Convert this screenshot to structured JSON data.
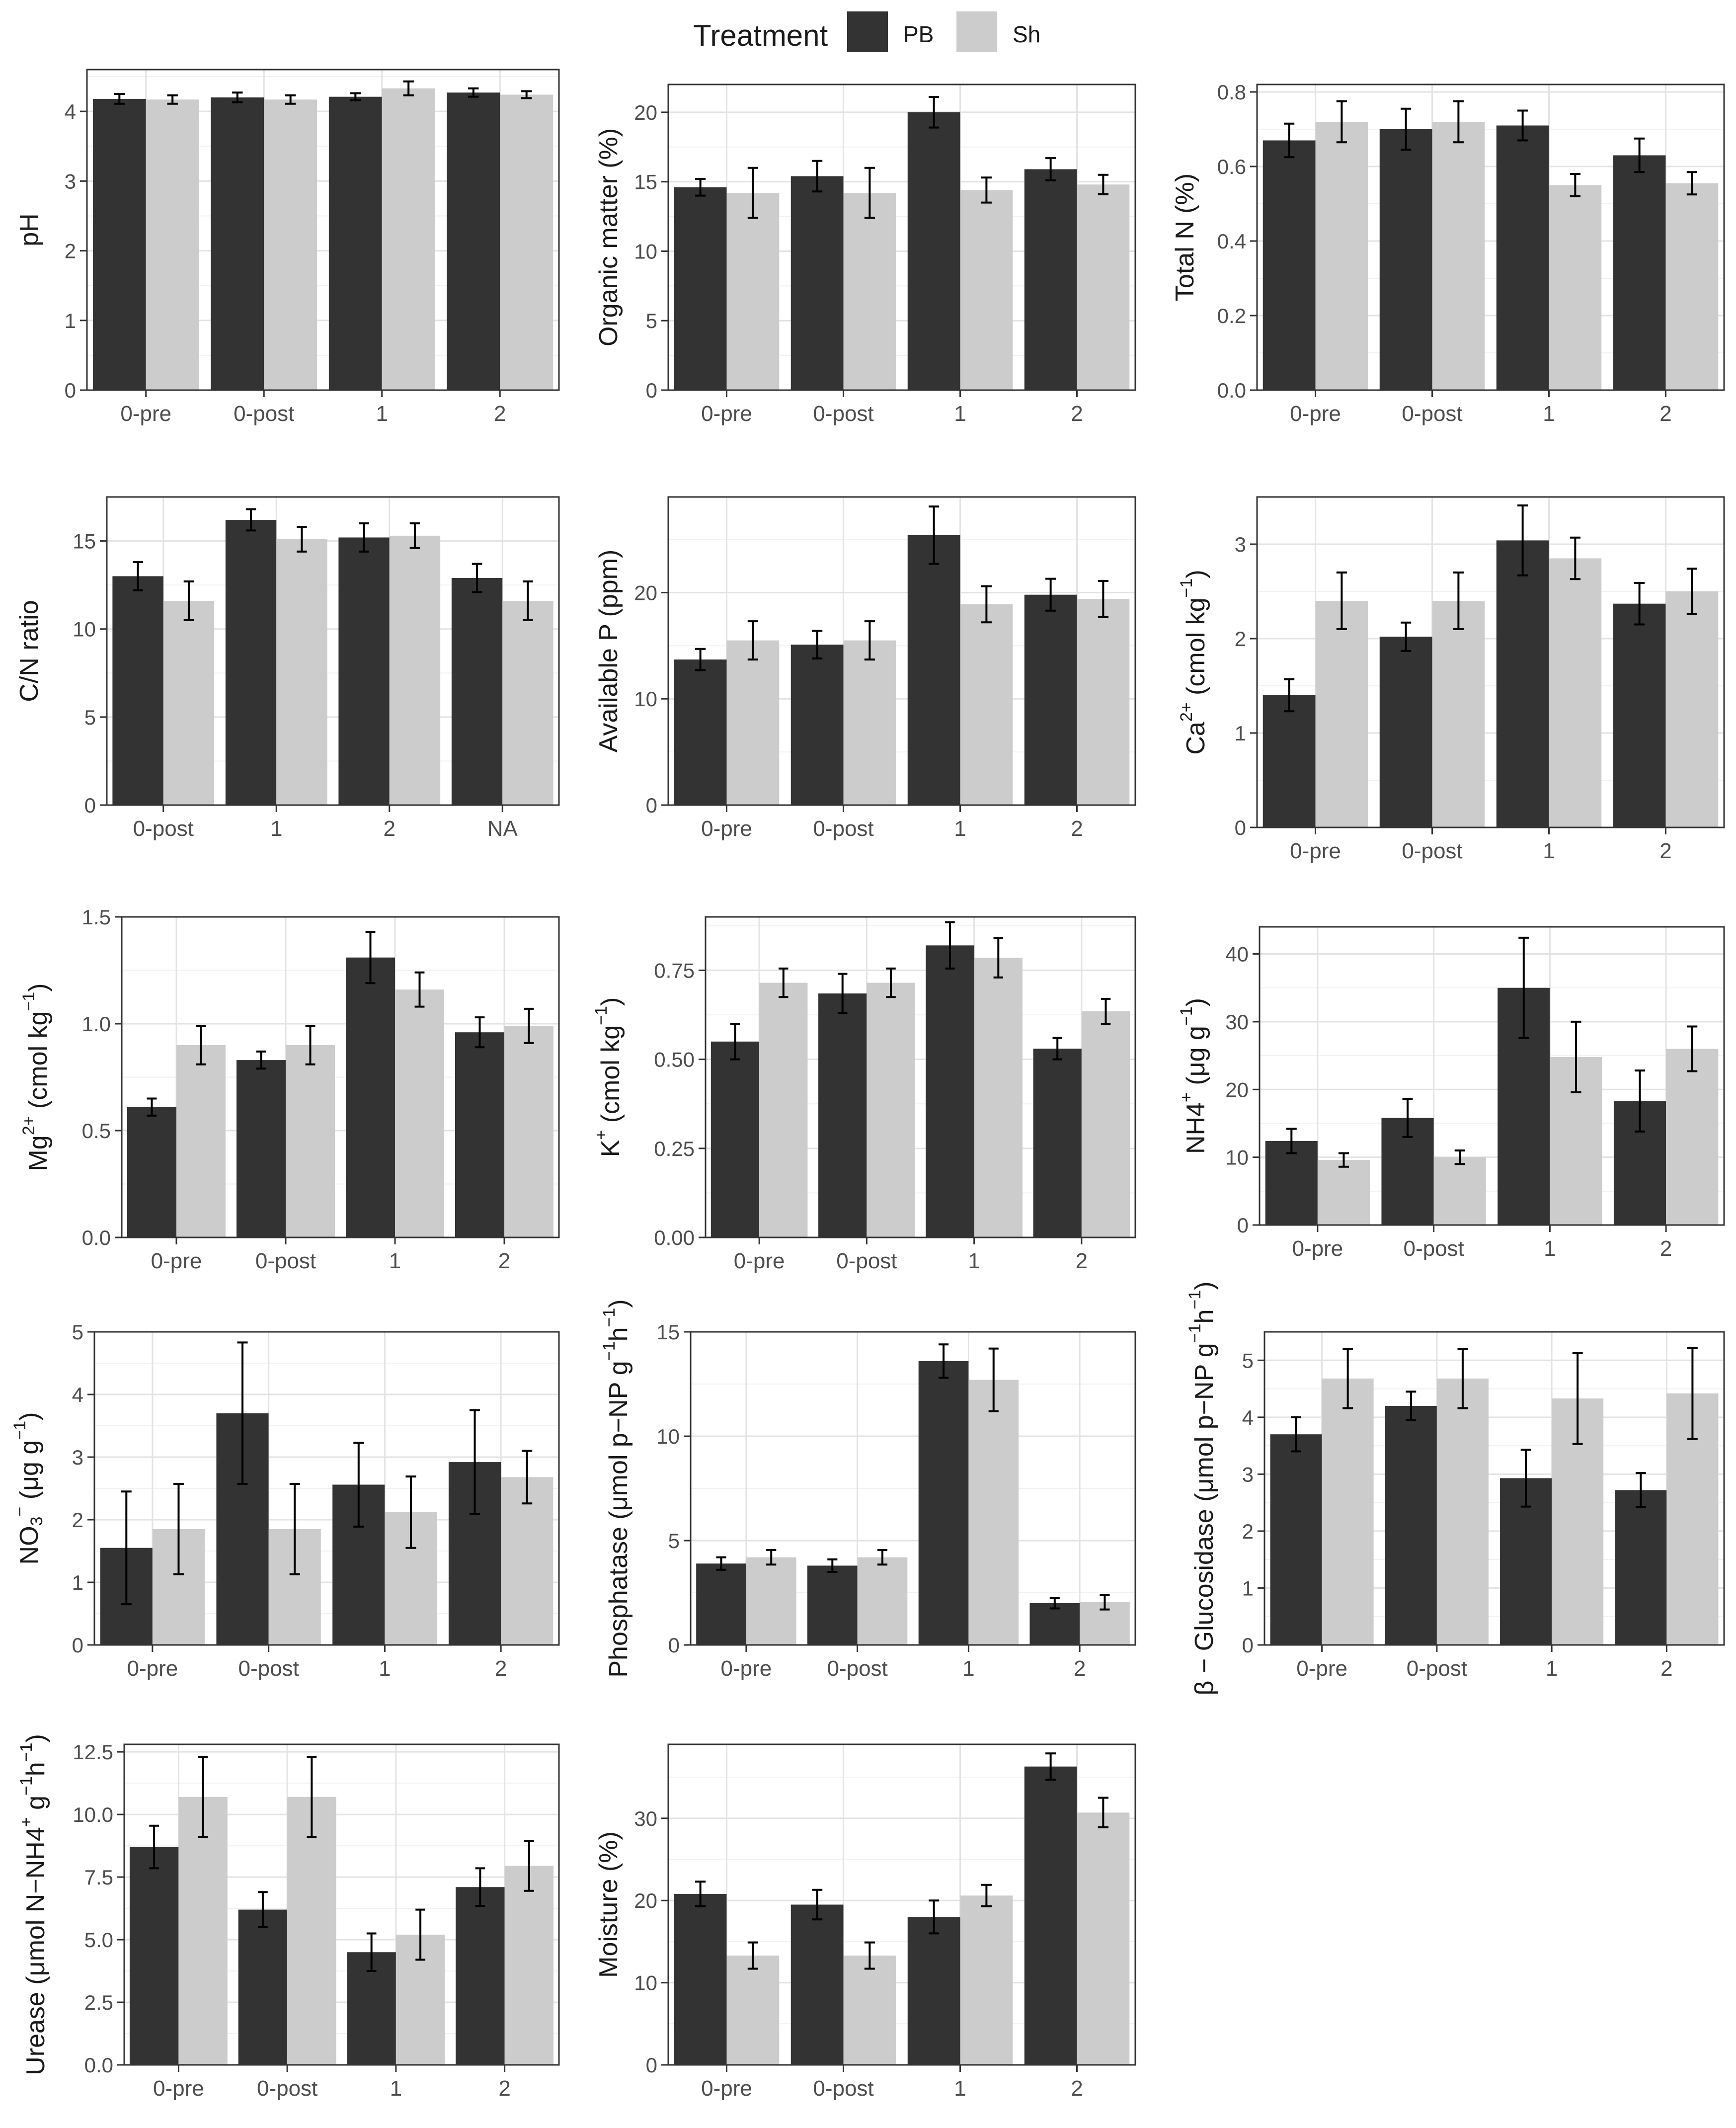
{
  "legend": {
    "title": "Treatment",
    "items": [
      {
        "label": "PB",
        "color": "#333333"
      },
      {
        "label": "Sh",
        "color": "#cccccc"
      }
    ]
  },
  "chart_data": [
    {
      "type": "bar",
      "title": "",
      "xlabel": "",
      "ylabel_parts": [
        {
          "t": "pH"
        }
      ],
      "categories": [
        "0-pre",
        "0-post",
        "1",
        "2"
      ],
      "ylim": [
        0,
        4.6
      ],
      "yticks": [
        0,
        1,
        2,
        3,
        4
      ],
      "series": [
        {
          "name": "PB",
          "values": [
            4.18,
            4.2,
            4.21,
            4.27
          ],
          "errors": [
            0.07,
            0.07,
            0.05,
            0.06
          ]
        },
        {
          "name": "Sh",
          "values": [
            4.17,
            4.17,
            4.33,
            4.24
          ],
          "errors": [
            0.06,
            0.06,
            0.1,
            0.05
          ]
        }
      ]
    },
    {
      "type": "bar",
      "title": "",
      "xlabel": "",
      "ylabel_parts": [
        {
          "t": "Organic matter (%)"
        }
      ],
      "categories": [
        "0-pre",
        "0-post",
        "1",
        "2"
      ],
      "ylim": [
        0,
        22
      ],
      "yticks": [
        0,
        5,
        10,
        15,
        20
      ],
      "series": [
        {
          "name": "PB",
          "values": [
            14.6,
            15.4,
            20.0,
            15.9
          ],
          "errors": [
            0.6,
            1.1,
            1.1,
            0.8
          ]
        },
        {
          "name": "Sh",
          "values": [
            14.2,
            14.2,
            14.4,
            14.8
          ],
          "errors": [
            1.8,
            1.8,
            0.9,
            0.7
          ]
        }
      ]
    },
    {
      "type": "bar",
      "title": "",
      "xlabel": "",
      "ylabel_parts": [
        {
          "t": "Total N (%)"
        }
      ],
      "categories": [
        "0-pre",
        "0-post",
        "1",
        "2"
      ],
      "ylim": [
        0,
        0.82
      ],
      "yticks": [
        0,
        0.2,
        0.4,
        0.6,
        0.8
      ],
      "yticklabels": [
        "0.0",
        "0.2",
        "0.4",
        "0.6",
        "0.8"
      ],
      "series": [
        {
          "name": "PB",
          "values": [
            0.67,
            0.7,
            0.71,
            0.63
          ],
          "errors": [
            0.045,
            0.055,
            0.04,
            0.045
          ]
        },
        {
          "name": "Sh",
          "values": [
            0.72,
            0.72,
            0.55,
            0.555
          ],
          "errors": [
            0.055,
            0.055,
            0.03,
            0.03
          ]
        }
      ]
    },
    {
      "type": "bar",
      "title": "",
      "xlabel": "",
      "ylabel_parts": [
        {
          "t": "C/N ratio"
        }
      ],
      "categories": [
        "0-post",
        "1",
        "2",
        "NA"
      ],
      "ylim": [
        0,
        17.5
      ],
      "yticks": [
        0,
        5,
        10,
        15
      ],
      "series": [
        {
          "name": "PB",
          "values": [
            13.0,
            16.2,
            15.2,
            12.9
          ],
          "errors": [
            0.8,
            0.6,
            0.8,
            0.8
          ]
        },
        {
          "name": "Sh",
          "values": [
            11.6,
            15.1,
            15.3,
            11.6
          ],
          "errors": [
            1.1,
            0.7,
            0.7,
            1.1
          ]
        }
      ]
    },
    {
      "type": "bar",
      "title": "",
      "xlabel": "",
      "ylabel_parts": [
        {
          "t": "Available P (ppm)"
        }
      ],
      "categories": [
        "0-pre",
        "0-post",
        "1",
        "2"
      ],
      "ylim": [
        0,
        29
      ],
      "yticks": [
        0,
        10,
        20
      ],
      "series": [
        {
          "name": "PB",
          "values": [
            13.7,
            15.1,
            25.4,
            19.8
          ],
          "errors": [
            1.0,
            1.3,
            2.7,
            1.5
          ]
        },
        {
          "name": "Sh",
          "values": [
            15.5,
            15.5,
            18.9,
            19.4
          ],
          "errors": [
            1.8,
            1.8,
            1.7,
            1.7
          ]
        }
      ]
    },
    {
      "type": "bar",
      "title": "",
      "xlabel": "",
      "ylabel_parts": [
        {
          "t": "Ca"
        },
        {
          "t": "2+",
          "sup": true
        },
        {
          "t": " (cmol kg"
        },
        {
          "t": "−1",
          "sup": true
        },
        {
          "t": ")"
        }
      ],
      "categories": [
        "0-pre",
        "0-post",
        "1",
        "2"
      ],
      "ylim": [
        0,
        3.5
      ],
      "yticks": [
        0,
        1,
        2,
        3
      ],
      "series": [
        {
          "name": "PB",
          "values": [
            1.4,
            2.02,
            3.04,
            2.37
          ],
          "errors": [
            0.17,
            0.15,
            0.37,
            0.22
          ]
        },
        {
          "name": "Sh",
          "values": [
            2.4,
            2.4,
            2.85,
            2.5
          ],
          "errors": [
            0.3,
            0.3,
            0.22,
            0.24
          ]
        }
      ]
    },
    {
      "type": "bar",
      "title": "",
      "xlabel": "",
      "ylabel_parts": [
        {
          "t": "Mg"
        },
        {
          "t": "2+",
          "sup": true
        },
        {
          "t": " (cmol kg"
        },
        {
          "t": "−1",
          "sup": true
        },
        {
          "t": ")"
        }
      ],
      "categories": [
        "0-pre",
        "0-post",
        "1",
        "2"
      ],
      "ylim": [
        0,
        1.5
      ],
      "yticks": [
        0,
        0.5,
        1.0,
        1.5
      ],
      "yticklabels": [
        "0.0",
        "0.5",
        "1.0",
        "1.5"
      ],
      "series": [
        {
          "name": "PB",
          "values": [
            0.61,
            0.83,
            1.31,
            0.96
          ],
          "errors": [
            0.04,
            0.04,
            0.12,
            0.07
          ]
        },
        {
          "name": "Sh",
          "values": [
            0.9,
            0.9,
            1.16,
            0.99
          ],
          "errors": [
            0.09,
            0.09,
            0.08,
            0.08
          ]
        }
      ]
    },
    {
      "type": "bar",
      "title": "",
      "xlabel": "",
      "ylabel_parts": [
        {
          "t": "K"
        },
        {
          "t": "+",
          "sup": true
        },
        {
          "t": " (cmol kg"
        },
        {
          "t": "−1",
          "sup": true
        },
        {
          "t": ")"
        }
      ],
      "categories": [
        "0-pre",
        "0-post",
        "1",
        "2"
      ],
      "ylim": [
        0,
        0.9
      ],
      "yticks": [
        0,
        0.25,
        0.5,
        0.75
      ],
      "yticklabels": [
        "0.00",
        "0.25",
        "0.50",
        "0.75"
      ],
      "series": [
        {
          "name": "PB",
          "values": [
            0.55,
            0.685,
            0.82,
            0.53
          ],
          "errors": [
            0.05,
            0.055,
            0.065,
            0.03
          ]
        },
        {
          "name": "Sh",
          "values": [
            0.715,
            0.715,
            0.785,
            0.635
          ],
          "errors": [
            0.04,
            0.04,
            0.055,
            0.035
          ]
        }
      ]
    },
    {
      "type": "bar",
      "title": "",
      "xlabel": "",
      "ylabel_parts": [
        {
          "t": "NH4"
        },
        {
          "t": "+",
          "sup": true
        },
        {
          "t": " (μg g"
        },
        {
          "t": "−1",
          "sup": true
        },
        {
          "t": ")"
        }
      ],
      "categories": [
        "0-pre",
        "0-post",
        "1",
        "2"
      ],
      "ylim": [
        0,
        44
      ],
      "yticks": [
        0,
        10,
        20,
        30,
        40
      ],
      "series": [
        {
          "name": "PB",
          "values": [
            12.4,
            15.8,
            35.0,
            18.3
          ],
          "errors": [
            1.8,
            2.8,
            7.4,
            4.5
          ]
        },
        {
          "name": "Sh",
          "values": [
            9.6,
            10.0,
            24.8,
            26.0
          ],
          "errors": [
            1.0,
            1.0,
            5.2,
            3.3
          ]
        }
      ]
    },
    {
      "type": "bar",
      "title": "",
      "xlabel": "",
      "ylabel_parts": [
        {
          "t": "NO"
        },
        {
          "t": "3",
          "sub": true
        },
        {
          "t": "−",
          "sup": true
        },
        {
          "t": " (μg g"
        },
        {
          "t": "−1",
          "sup": true
        },
        {
          "t": ")"
        }
      ],
      "categories": [
        "0-pre",
        "0-post",
        "1",
        "2"
      ],
      "ylim": [
        0,
        5.0
      ],
      "yticks": [
        0,
        1,
        2,
        3,
        4,
        5
      ],
      "series": [
        {
          "name": "PB",
          "values": [
            1.55,
            3.7,
            2.56,
            2.92
          ],
          "errors": [
            0.9,
            1.13,
            0.67,
            0.83
          ]
        },
        {
          "name": "Sh",
          "values": [
            1.85,
            1.85,
            2.12,
            2.68
          ],
          "errors": [
            0.72,
            0.72,
            0.57,
            0.42
          ]
        }
      ]
    },
    {
      "type": "bar",
      "title": "",
      "xlabel": "",
      "ylabel_parts": [
        {
          "t": "Phosphatase (μmol p−NP g"
        },
        {
          "t": "−1",
          "sup": true
        },
        {
          "t": "h"
        },
        {
          "t": "−1",
          "sup": true
        },
        {
          "t": ")"
        }
      ],
      "categories": [
        "0-pre",
        "0-post",
        "1",
        "2"
      ],
      "ylim": [
        0,
        15
      ],
      "yticks": [
        0,
        5,
        10,
        15
      ],
      "series": [
        {
          "name": "PB",
          "values": [
            3.9,
            3.8,
            13.6,
            2.0
          ],
          "errors": [
            0.3,
            0.3,
            0.8,
            0.25
          ]
        },
        {
          "name": "Sh",
          "values": [
            4.2,
            4.2,
            12.7,
            2.05
          ],
          "errors": [
            0.35,
            0.35,
            1.5,
            0.35
          ]
        }
      ]
    },
    {
      "type": "bar",
      "title": "",
      "xlabel": "",
      "ylabel_parts": [
        {
          "t": "β − Glucosidase (μmol p−NP g"
        },
        {
          "t": "−1",
          "sup": true
        },
        {
          "t": "h"
        },
        {
          "t": "−1",
          "sup": true
        },
        {
          "t": ")"
        }
      ],
      "categories": [
        "0-pre",
        "0-post",
        "1",
        "2"
      ],
      "ylim": [
        0,
        5.5
      ],
      "yticks": [
        0,
        1,
        2,
        3,
        4,
        5
      ],
      "series": [
        {
          "name": "PB",
          "values": [
            3.7,
            4.2,
            2.93,
            2.72
          ],
          "errors": [
            0.3,
            0.25,
            0.5,
            0.3
          ]
        },
        {
          "name": "Sh",
          "values": [
            4.68,
            4.68,
            4.33,
            4.42
          ],
          "errors": [
            0.52,
            0.52,
            0.8,
            0.8
          ]
        }
      ]
    },
    {
      "type": "bar",
      "title": "",
      "xlabel": "",
      "ylabel_parts": [
        {
          "t": "Urease (μmol N−NH4"
        },
        {
          "t": "+",
          "sup": true
        },
        {
          "t": " g"
        },
        {
          "t": "−1",
          "sup": true
        },
        {
          "t": "h"
        },
        {
          "t": "−1",
          "sup": true
        },
        {
          "t": ")"
        }
      ],
      "categories": [
        "0-pre",
        "0-post",
        "1",
        "2"
      ],
      "ylim": [
        0,
        12.8
      ],
      "yticks": [
        0,
        2.5,
        5,
        7.5,
        10,
        12.5
      ],
      "yticklabels": [
        "0.0",
        "2.5",
        "5.0",
        "7.5",
        "10.0",
        "12.5"
      ],
      "series": [
        {
          "name": "PB",
          "values": [
            8.7,
            6.2,
            4.5,
            7.1
          ],
          "errors": [
            0.85,
            0.7,
            0.75,
            0.75
          ]
        },
        {
          "name": "Sh",
          "values": [
            10.7,
            10.7,
            5.2,
            7.95
          ],
          "errors": [
            1.6,
            1.6,
            1.0,
            1.0
          ]
        }
      ]
    },
    {
      "type": "bar",
      "title": "",
      "xlabel": "",
      "ylabel_parts": [
        {
          "t": "Moisture (%)"
        }
      ],
      "categories": [
        "0-pre",
        "0-post",
        "1",
        "2"
      ],
      "ylim": [
        0,
        39
      ],
      "yticks": [
        0,
        10,
        20,
        30
      ],
      "series": [
        {
          "name": "PB",
          "values": [
            20.8,
            19.5,
            18.0,
            36.3
          ],
          "errors": [
            1.5,
            1.8,
            2.0,
            1.6
          ]
        },
        {
          "name": "Sh",
          "values": [
            13.3,
            13.3,
            20.6,
            30.7
          ],
          "errors": [
            1.6,
            1.6,
            1.3,
            1.8
          ]
        }
      ]
    }
  ]
}
